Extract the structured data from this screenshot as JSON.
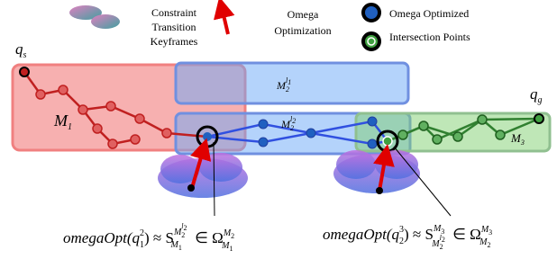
{
  "legend": {
    "keyframes": [
      "Constraint",
      "Transition",
      "Keyframes"
    ],
    "optimization": [
      "Omega",
      "Optimization"
    ],
    "points": [
      "Omega Optimized",
      "Intersection Points"
    ]
  },
  "labels": {
    "start": {
      "base": "q",
      "sub": "s"
    },
    "goal": {
      "base": "q",
      "sub": "g"
    },
    "m1": {
      "base": "M",
      "sub": "1"
    },
    "m2l1": {
      "base": "M",
      "sub": "2",
      "sup": "l",
      "sup_sub": "1"
    },
    "m2l2": {
      "base": "M",
      "sub": "2",
      "sup": "l",
      "sup_sub": "2"
    },
    "m3": {
      "base": "M",
      "sub": "3"
    }
  },
  "formulas": [
    {
      "lead": "omegaOpt(q",
      "q_sup": "2",
      "q_sub": "1",
      "rel": ") ≈ S",
      "s_sub": "M",
      "s_sub_sub": "1",
      "s_sup": "M",
      "s_sup_sub": "2",
      "s_sup_sup": "l",
      "s_sup_sup_sub": "2",
      "in": " ∈ Ω",
      "o_sub": "M",
      "o_sub_sub": "1",
      "o_sup": "M",
      "o_sup_sub": "2"
    },
    {
      "lead": "omegaOpt(q",
      "q_sup": "3",
      "q_sub": "2",
      "rel": ") ≈ S",
      "s_sub": "M",
      "s_sub_sub": "2",
      "s_sup": "M",
      "s_sup_sub": "3",
      "s_sub_sup": "l",
      "s_sub_sup_sub": "2",
      "in": " ∈ Ω",
      "o_sub": "M",
      "o_sub_sub": "2",
      "o_sup": "M",
      "o_sup_sub": "3"
    }
  ]
}
